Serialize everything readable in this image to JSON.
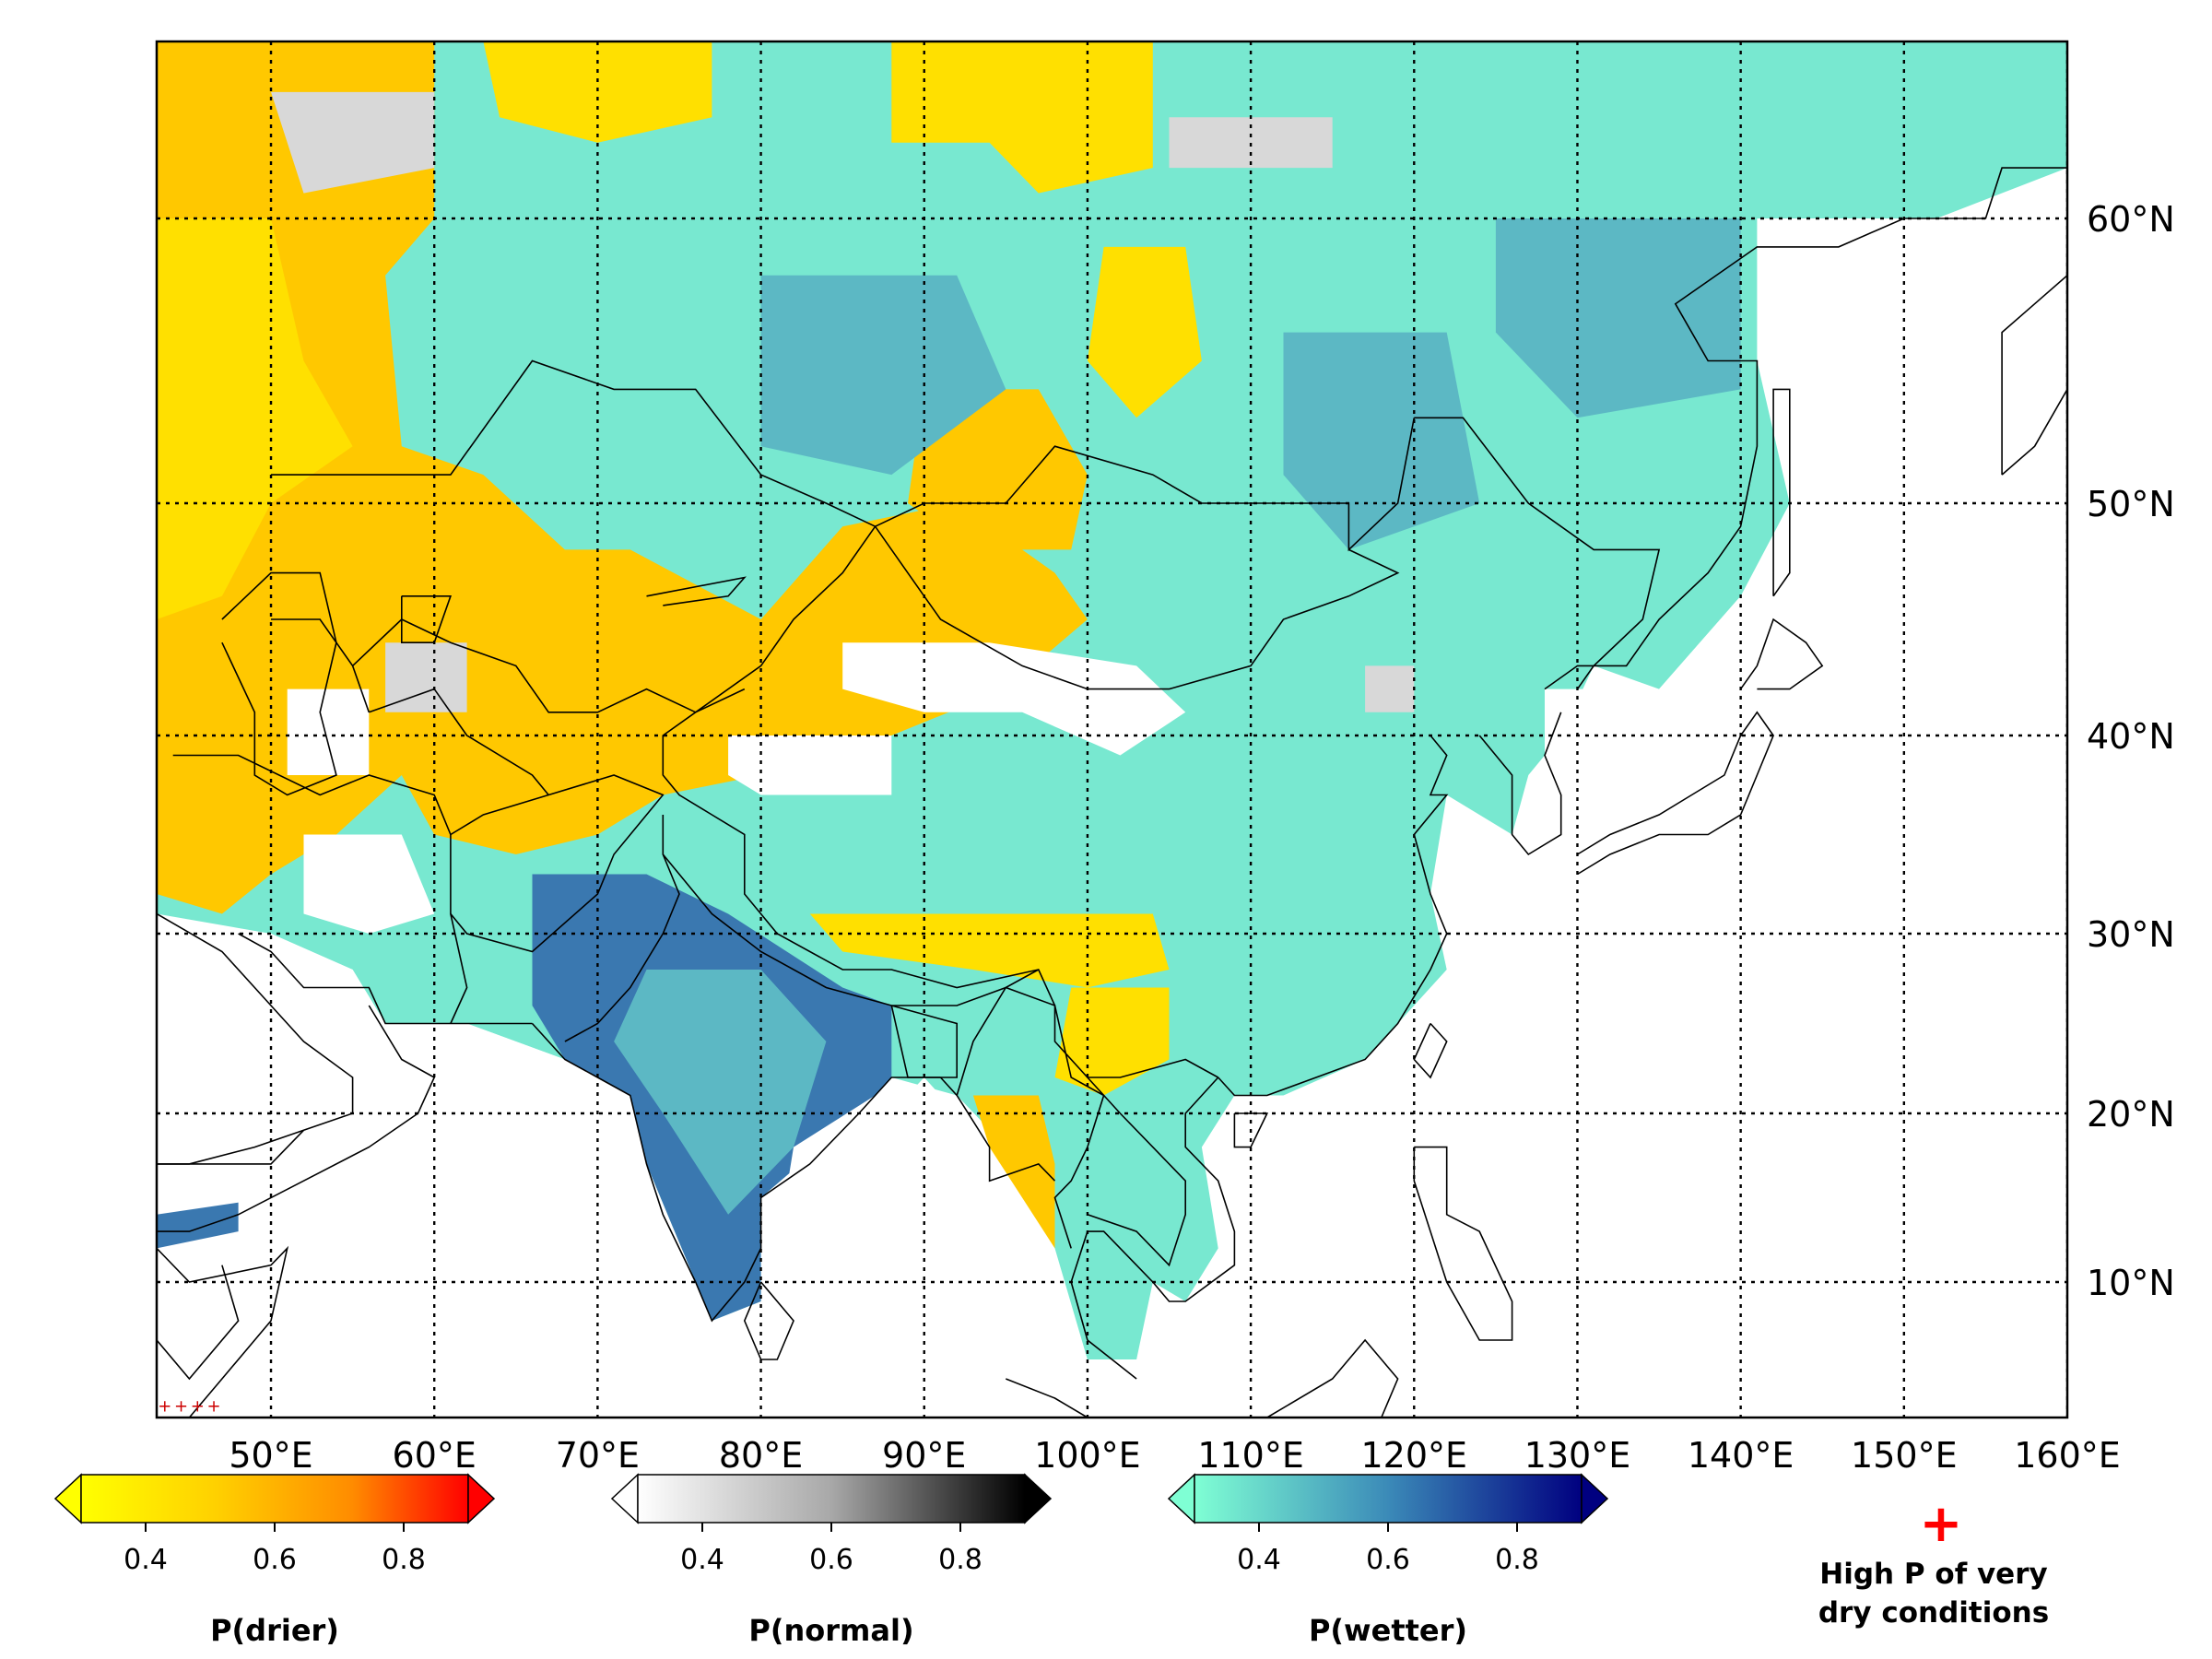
{
  "map": {
    "extent": {
      "lon_min": 43,
      "lon_max": 160,
      "lat_min": 3,
      "lat_max": 67
    },
    "meridians": [
      50,
      60,
      70,
      80,
      90,
      100,
      110,
      120,
      130,
      140,
      150,
      160
    ],
    "parallels": [
      10,
      20,
      30,
      40,
      50,
      60
    ],
    "lon_labels": [
      "50°E",
      "60°E",
      "70°E",
      "80°E",
      "90°E",
      "100°E",
      "110°E",
      "120°E",
      "130°E",
      "140°E",
      "150°E",
      "160°E"
    ],
    "lat_labels": [
      "10°N",
      "20°N",
      "30°N",
      "40°N",
      "50°N",
      "60°N"
    ]
  },
  "colorbars": [
    {
      "title": "P(drier)",
      "ticks": [
        "0.4",
        "0.6",
        "0.8"
      ],
      "tick_values": [
        0.4,
        0.6,
        0.8
      ],
      "range": [
        0.3,
        0.9
      ],
      "colors": [
        "#ffff00",
        "#ffd000",
        "#ff8c00",
        "#ff0000"
      ]
    },
    {
      "title": "P(normal)",
      "ticks": [
        "0.4",
        "0.6",
        "0.8"
      ],
      "tick_values": [
        0.4,
        0.6,
        0.8
      ],
      "range": [
        0.3,
        0.9
      ],
      "colors": [
        "#ffffff",
        "#b0b0b0",
        "#000000"
      ]
    },
    {
      "title": "P(wetter)",
      "ticks": [
        "0.4",
        "0.6",
        "0.8"
      ],
      "tick_values": [
        0.4,
        0.6,
        0.8
      ],
      "range": [
        0.3,
        0.9
      ],
      "colors": [
        "#7fffd4",
        "#3b8ab8",
        "#000080"
      ]
    }
  ],
  "legend": {
    "marker_symbol": "+",
    "marker_color": "#ff0000",
    "line1": "High P of very",
    "line2": "dry conditions"
  },
  "category_colors": {
    "drier_low": "#ffe000",
    "drier_mid": "#ffc800",
    "wetter_low": "#78e8d0",
    "wetter_mid": "#5cb8c4",
    "wetter_high": "#3a78b0",
    "normal": "#d8d8d8",
    "no_signal": "#ffffff"
  }
}
